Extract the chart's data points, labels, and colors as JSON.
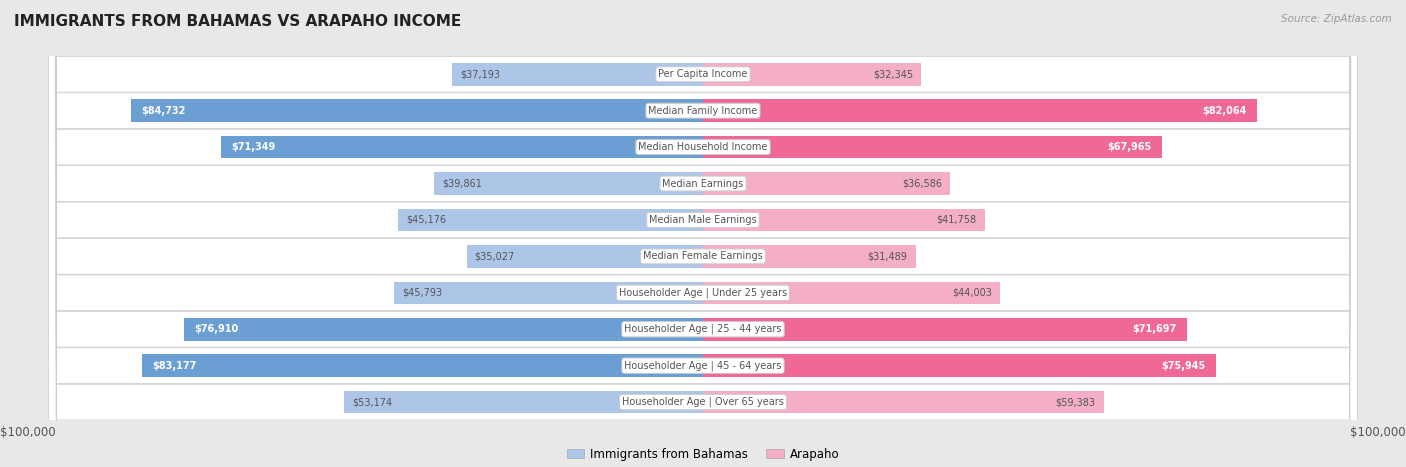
{
  "title": "IMMIGRANTS FROM BAHAMAS VS ARAPAHO INCOME",
  "source": "Source: ZipAtlas.com",
  "categories": [
    "Per Capita Income",
    "Median Family Income",
    "Median Household Income",
    "Median Earnings",
    "Median Male Earnings",
    "Median Female Earnings",
    "Householder Age | Under 25 years",
    "Householder Age | 25 - 44 years",
    "Householder Age | 45 - 64 years",
    "Householder Age | Over 65 years"
  ],
  "bahamas_values": [
    37193,
    84732,
    71349,
    39861,
    45176,
    35027,
    45793,
    76910,
    83177,
    53174
  ],
  "arapaho_values": [
    32345,
    82064,
    67965,
    36586,
    41758,
    31489,
    44003,
    71697,
    75945,
    59383
  ],
  "bahamas_labels": [
    "$37,193",
    "$84,732",
    "$71,349",
    "$39,861",
    "$45,176",
    "$35,027",
    "$45,793",
    "$76,910",
    "$83,177",
    "$53,174"
  ],
  "arapaho_labels": [
    "$32,345",
    "$82,064",
    "$67,965",
    "$36,586",
    "$41,758",
    "$31,489",
    "$44,003",
    "$71,697",
    "$75,945",
    "$59,383"
  ],
  "bahamas_color_light": "#adc6e8",
  "bahamas_color_dark": "#6b9fd4",
  "arapaho_color_light": "#f4aec8",
  "arapaho_color_dark": "#f06898",
  "max_value": 100000,
  "bg_color": "#e8e8e8",
  "row_bg_color": "#ffffff",
  "label_outside_color": "#555555",
  "label_inside_color": "#ffffff",
  "threshold_dark": 60000,
  "category_text_color": "#555555",
  "title_color": "#222222",
  "source_color": "#999999",
  "axis_label_color": "#555555",
  "legend_bahamas": "Immigrants from Bahamas",
  "legend_arapaho": "Arapaho"
}
